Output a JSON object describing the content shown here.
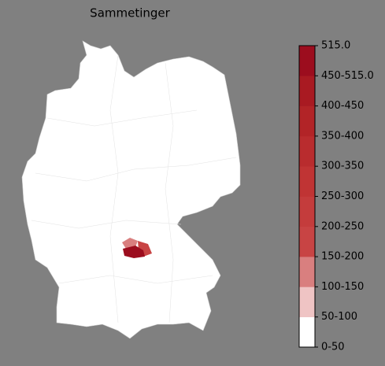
{
  "title": "Sammetinger",
  "colorbar": {
    "labels": [
      "0-50",
      "50-100",
      "100-150",
      "150-200",
      "200-250",
      "250-300",
      "300-350",
      "350-400",
      "400-450",
      "450-515.0",
      "515.0"
    ],
    "colors": [
      "#ffffff",
      "#efc4c4",
      "#d97f7f",
      "#c84444",
      "#c43c3c",
      "#c03434",
      "#b92c2e",
      "#b22427",
      "#a91a22",
      "#9c0d1e"
    ]
  }
}
